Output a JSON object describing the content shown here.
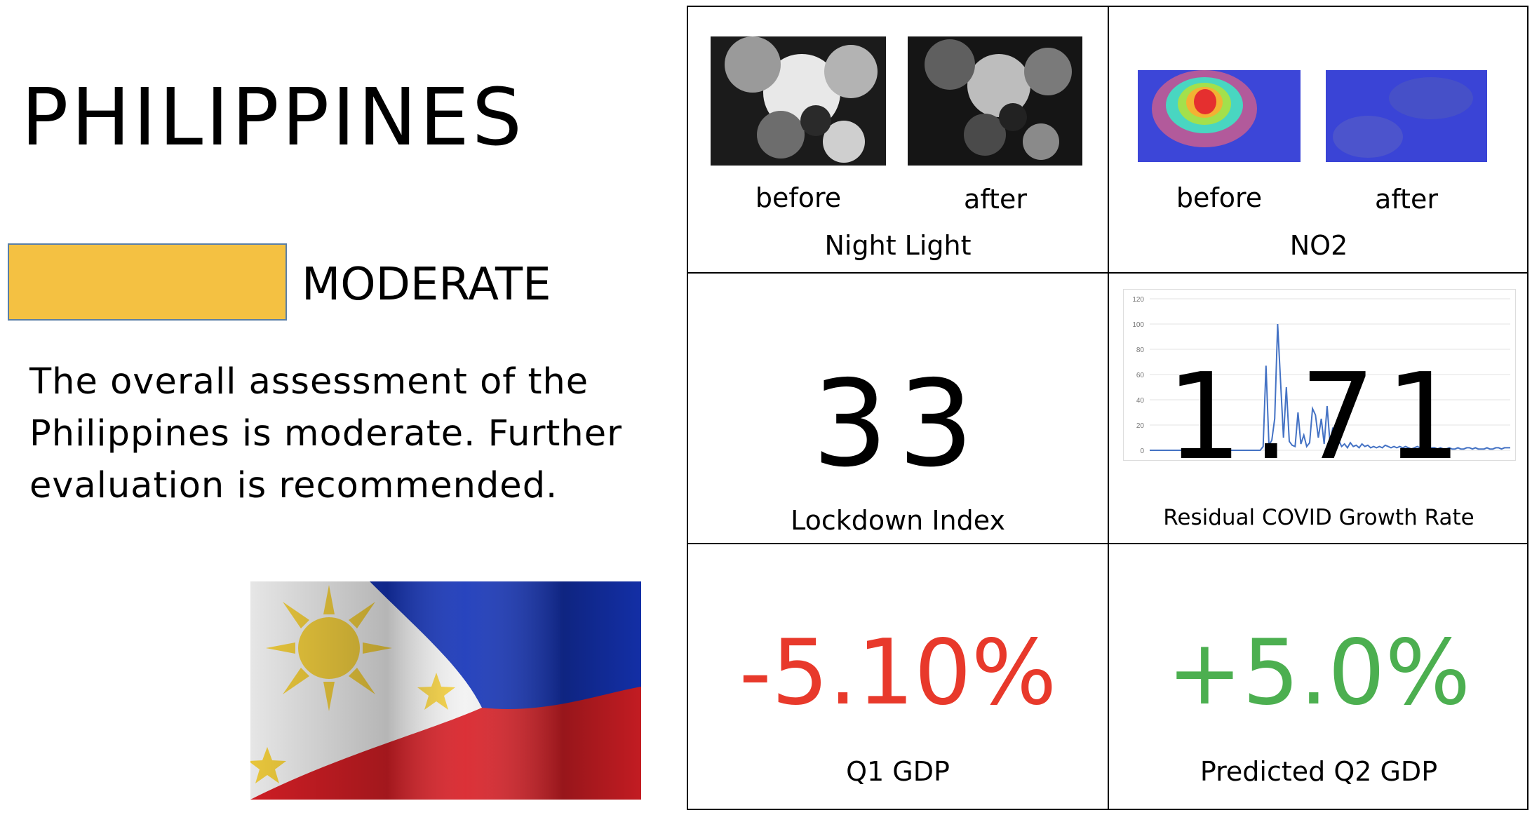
{
  "country": "PHILIPPINES",
  "rating": {
    "label": "MODERATE",
    "color": "#f4c142"
  },
  "assessment": "The overall assessment of the Philippines is moderate. Further evaluation is recommended.",
  "night_light": {
    "before": "before",
    "after": "after",
    "caption": "Night Light"
  },
  "no2": {
    "before": "before",
    "after": "after",
    "caption": "NO2"
  },
  "lockdown": {
    "value": "33",
    "caption": "Lockdown Index"
  },
  "covid": {
    "value": "1.71",
    "caption": "Residual COVID Growth Rate",
    "axis_ticks": [
      "120",
      "100",
      "80",
      "60",
      "40",
      "20",
      "0"
    ]
  },
  "q1_gdp": {
    "value": "-5.10%",
    "caption": "Q1 GDP",
    "color": "#e8392b"
  },
  "q2_gdp": {
    "value": "+5.0%",
    "caption": "Predicted Q2 GDP",
    "color": "#4caf50"
  },
  "chart_data": {
    "type": "line",
    "ylim": [
      0,
      120
    ],
    "yticks": [
      0,
      20,
      40,
      60,
      80,
      100,
      120
    ],
    "values": [
      0,
      0,
      0,
      0,
      0,
      0,
      0,
      0,
      0,
      0,
      0,
      0,
      0,
      0,
      0,
      0,
      0,
      0,
      0,
      0,
      0,
      0,
      0,
      0,
      0,
      0,
      0,
      0,
      0,
      0,
      0,
      0,
      0,
      0,
      0,
      0,
      0,
      0,
      0,
      3,
      67,
      4,
      8,
      25,
      100,
      55,
      10,
      50,
      7,
      4,
      3,
      30,
      5,
      12,
      3,
      6,
      33,
      28,
      10,
      25,
      5,
      35,
      6,
      18,
      4,
      8,
      3,
      5,
      2,
      6,
      3,
      4,
      2,
      5,
      3,
      4,
      2,
      3,
      2,
      3,
      2,
      4,
      3,
      2,
      3,
      2,
      3,
      2,
      3,
      2,
      1,
      2,
      3,
      2,
      1,
      2,
      1,
      2,
      2,
      1,
      2,
      1,
      1,
      2,
      1,
      1,
      2,
      1,
      1,
      2,
      2,
      1,
      2,
      1,
      1,
      1,
      2,
      1,
      1,
      2,
      2,
      1,
      2,
      2,
      2
    ],
    "grid": true
  }
}
